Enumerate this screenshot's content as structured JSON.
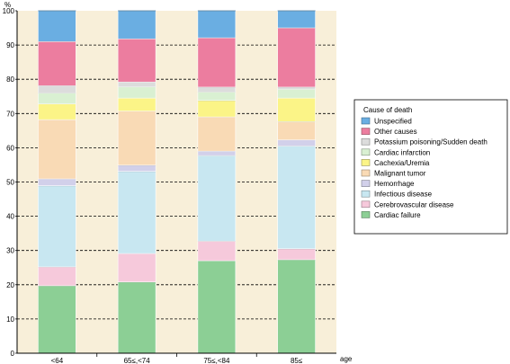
{
  "chart_data": {
    "type": "bar",
    "stacked": true,
    "ylabel": "%",
    "xlabel": "age",
    "ylim": [
      0,
      100
    ],
    "yticks": [
      0,
      10,
      20,
      30,
      40,
      50,
      60,
      70,
      80,
      90,
      100
    ],
    "grid": "horizontal dashed",
    "categories": [
      "<64",
      "65≤,<74",
      "75≤,<84",
      "85≤"
    ],
    "legend_title": "Cause of death",
    "legend_position": "right",
    "series": [
      {
        "name": "Cardiac failure",
        "color": "#8ccf95",
        "values": [
          19.7,
          20.8,
          27.0,
          27.3
        ]
      },
      {
        "name": "Cerebrovascular disease",
        "color": "#f6c9db",
        "values": [
          5.5,
          8.3,
          5.7,
          3.2
        ]
      },
      {
        "name": "Infectious disease",
        "color": "#c8e7f1",
        "values": [
          23.7,
          24.0,
          25.0,
          30.0
        ]
      },
      {
        "name": "Hemorrhage",
        "color": "#d2d0ea",
        "values": [
          2.0,
          1.8,
          1.3,
          1.8
        ]
      },
      {
        "name": "Malignant tumor",
        "color": "#f9dab5",
        "values": [
          17.3,
          15.8,
          10.0,
          5.3
        ]
      },
      {
        "name": "Cachexia/Uremia",
        "color": "#fbf487",
        "values": [
          4.6,
          3.8,
          4.8,
          6.9
        ]
      },
      {
        "name": "Cardiac infarction",
        "color": "#d9f0d2",
        "values": [
          3.2,
          3.3,
          2.5,
          2.6
        ]
      },
      {
        "name": "Potassium poisoning/Sudden death",
        "color": "#dcdcdc",
        "values": [
          2.1,
          1.4,
          1.4,
          0.6
        ]
      },
      {
        "name": "Other causes",
        "color": "#ec7d9f",
        "values": [
          12.9,
          12.6,
          14.4,
          17.3
        ]
      },
      {
        "name": "Unspecified",
        "color": "#6aaee2",
        "values": [
          9.0,
          8.2,
          7.9,
          5.0
        ]
      }
    ]
  },
  "colors": {
    "plot_background": "#f8efd9",
    "bar_border": "#ffffff"
  }
}
